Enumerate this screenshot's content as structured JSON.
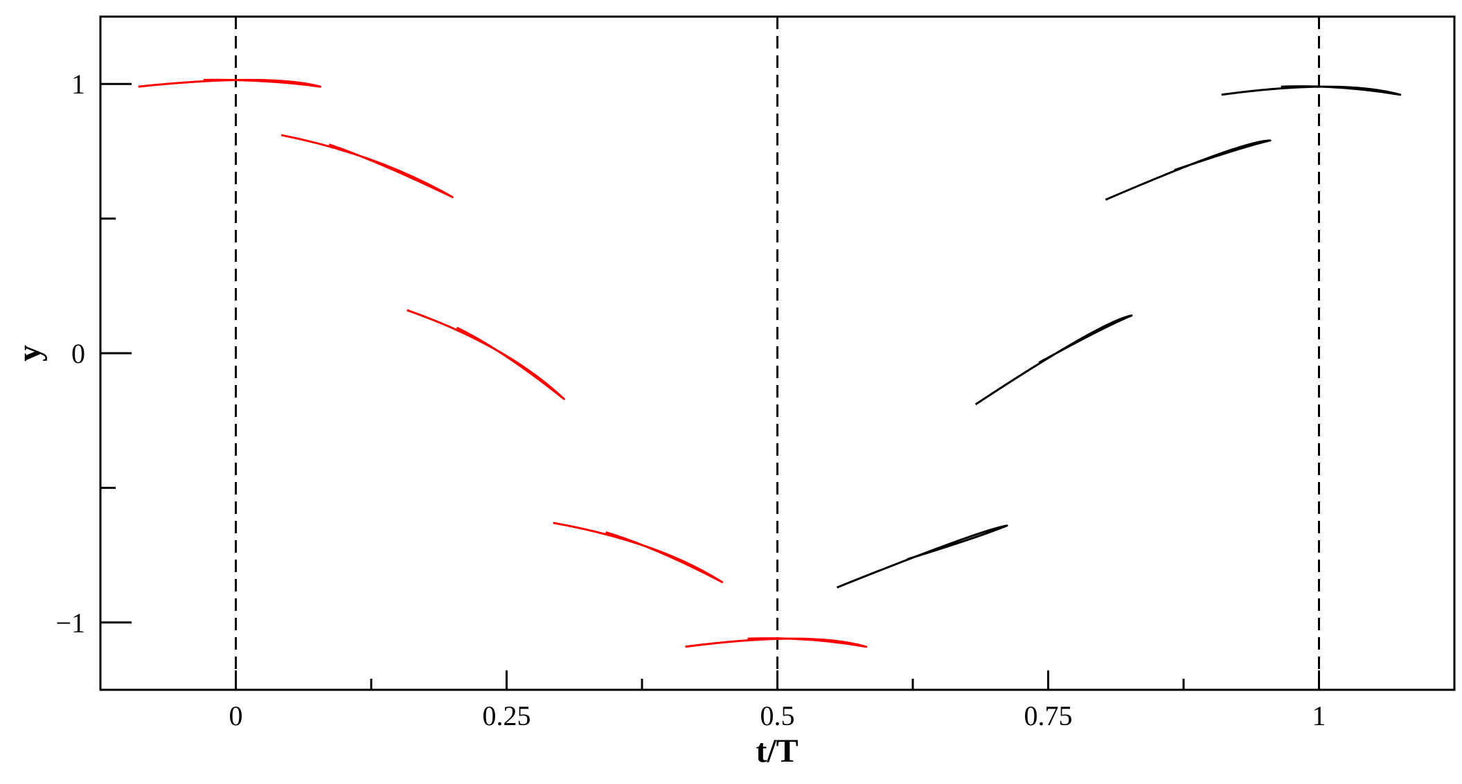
{
  "chart_data": {
    "type": "line",
    "title": "",
    "xlabel": "t/T",
    "ylabel": "y",
    "xlim": [
      -0.125,
      1.125
    ],
    "ylim": [
      -1.25,
      1.25
    ],
    "x_ticks": [
      0,
      0.25,
      0.5,
      0.75,
      1
    ],
    "x_tick_labels": [
      "0",
      "0.25",
      "0.5",
      "0.75",
      "1"
    ],
    "x_minor_ticks": [
      0.125,
      0.375,
      0.625,
      0.875
    ],
    "y_ticks": [
      -1,
      0,
      1
    ],
    "y_tick_labels": [
      "−1",
      "0",
      "1"
    ],
    "y_minor_ticks": [
      -0.5,
      0.5
    ],
    "vlines": [
      0,
      0.5,
      1
    ],
    "vline_style": "dashed",
    "grid": false,
    "legend": "none",
    "colors": {
      "downstroke": "#ff0000",
      "upstroke": "#000000",
      "axes": "#000000"
    },
    "series": [
      {
        "group": "downstroke",
        "color": "#ff0000",
        "lead": [
          -0.09,
          0.99
        ],
        "peak": [
          0.03,
          1.04
        ],
        "trail": [
          0.078,
          0.99
        ]
      },
      {
        "group": "downstroke",
        "color": "#ff0000",
        "lead": [
          0.042,
          0.81
        ],
        "peak": [
          0.13,
          0.74
        ],
        "trail": [
          0.2,
          0.58
        ]
      },
      {
        "group": "downstroke",
        "color": "#ff0000",
        "lead": [
          0.158,
          0.16
        ],
        "peak": [
          0.25,
          0.03
        ],
        "trail": [
          0.303,
          -0.17
        ]
      },
      {
        "group": "downstroke",
        "color": "#ff0000",
        "lead": [
          0.293,
          -0.63
        ],
        "peak": [
          0.39,
          -0.7
        ],
        "trail": [
          0.449,
          -0.85
        ]
      },
      {
        "group": "downstroke",
        "color": "#ff0000",
        "lead": [
          0.415,
          -1.09
        ],
        "peak": [
          0.53,
          -1.03
        ],
        "trail": [
          0.582,
          -1.09
        ]
      },
      {
        "group": "upstroke",
        "color": "#000000",
        "lead": [
          0.555,
          -0.87
        ],
        "peak": [
          0.685,
          -0.66
        ],
        "trail": [
          0.712,
          -0.64
        ]
      },
      {
        "group": "upstroke",
        "color": "#000000",
        "lead": [
          0.683,
          -0.19
        ],
        "peak": [
          0.8,
          0.12
        ],
        "trail": [
          0.827,
          0.14
        ]
      },
      {
        "group": "upstroke",
        "color": "#000000",
        "lead": [
          0.803,
          0.57
        ],
        "peak": [
          0.93,
          0.79
        ],
        "trail": [
          0.955,
          0.79
        ]
      },
      {
        "group": "upstroke",
        "color": "#000000",
        "lead": [
          0.91,
          0.96
        ],
        "peak": [
          1.02,
          1.02
        ],
        "trail": [
          1.075,
          0.96
        ]
      }
    ]
  }
}
